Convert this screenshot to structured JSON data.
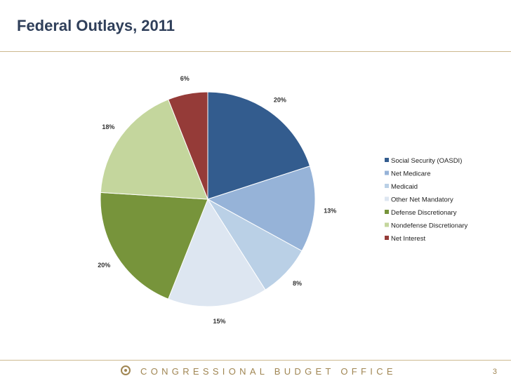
{
  "header": {
    "title": "Federal Outlays, 2011"
  },
  "footer": {
    "org": "CONGRESSIONAL BUDGET OFFICE",
    "page_number": "3"
  },
  "chart_data": {
    "type": "pie",
    "title": "",
    "slices": [
      {
        "name": "Social Security (OASDI)",
        "value": 20,
        "label": "20%",
        "color": "#335c8e"
      },
      {
        "name": "Net Medicare",
        "value": 13,
        "label": "13%",
        "color": "#96b3d8"
      },
      {
        "name": "Medicaid",
        "value": 8,
        "label": "8%",
        "color": "#bad0e6"
      },
      {
        "name": "Other Net Mandatory",
        "value": 15,
        "label": "15%",
        "color": "#dde6f1"
      },
      {
        "name": "Defense Discretionary",
        "value": 20,
        "label": "20%",
        "color": "#77943b"
      },
      {
        "name": "Nondefense Discretionary",
        "value": 18,
        "label": "18%",
        "color": "#c4d69d"
      },
      {
        "name": "Net Interest",
        "value": 6,
        "label": "6%",
        "color": "#953b38"
      }
    ],
    "legend_position": "right"
  }
}
